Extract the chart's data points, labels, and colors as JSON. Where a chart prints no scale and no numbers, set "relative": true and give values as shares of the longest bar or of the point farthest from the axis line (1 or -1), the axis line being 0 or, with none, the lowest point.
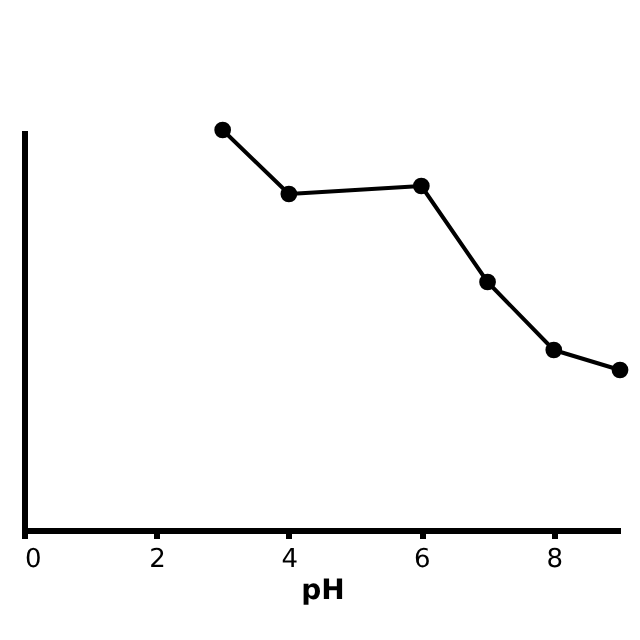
{
  "chart_data": {
    "type": "line",
    "xlabel": "pH",
    "relative": true,
    "x": [
      3,
      4,
      6,
      7,
      8,
      9
    ],
    "series": [
      {
        "color": "#000000",
        "values": [
          1,
          0.84,
          0.86,
          0.62,
          0.45,
          0.4
        ]
      }
    ],
    "xlim": [
      0,
      9
    ],
    "xticks": [
      0,
      2,
      4,
      6,
      8
    ],
    "marker": "circle",
    "line_style": "solid",
    "grid": false,
    "legend": false
  }
}
